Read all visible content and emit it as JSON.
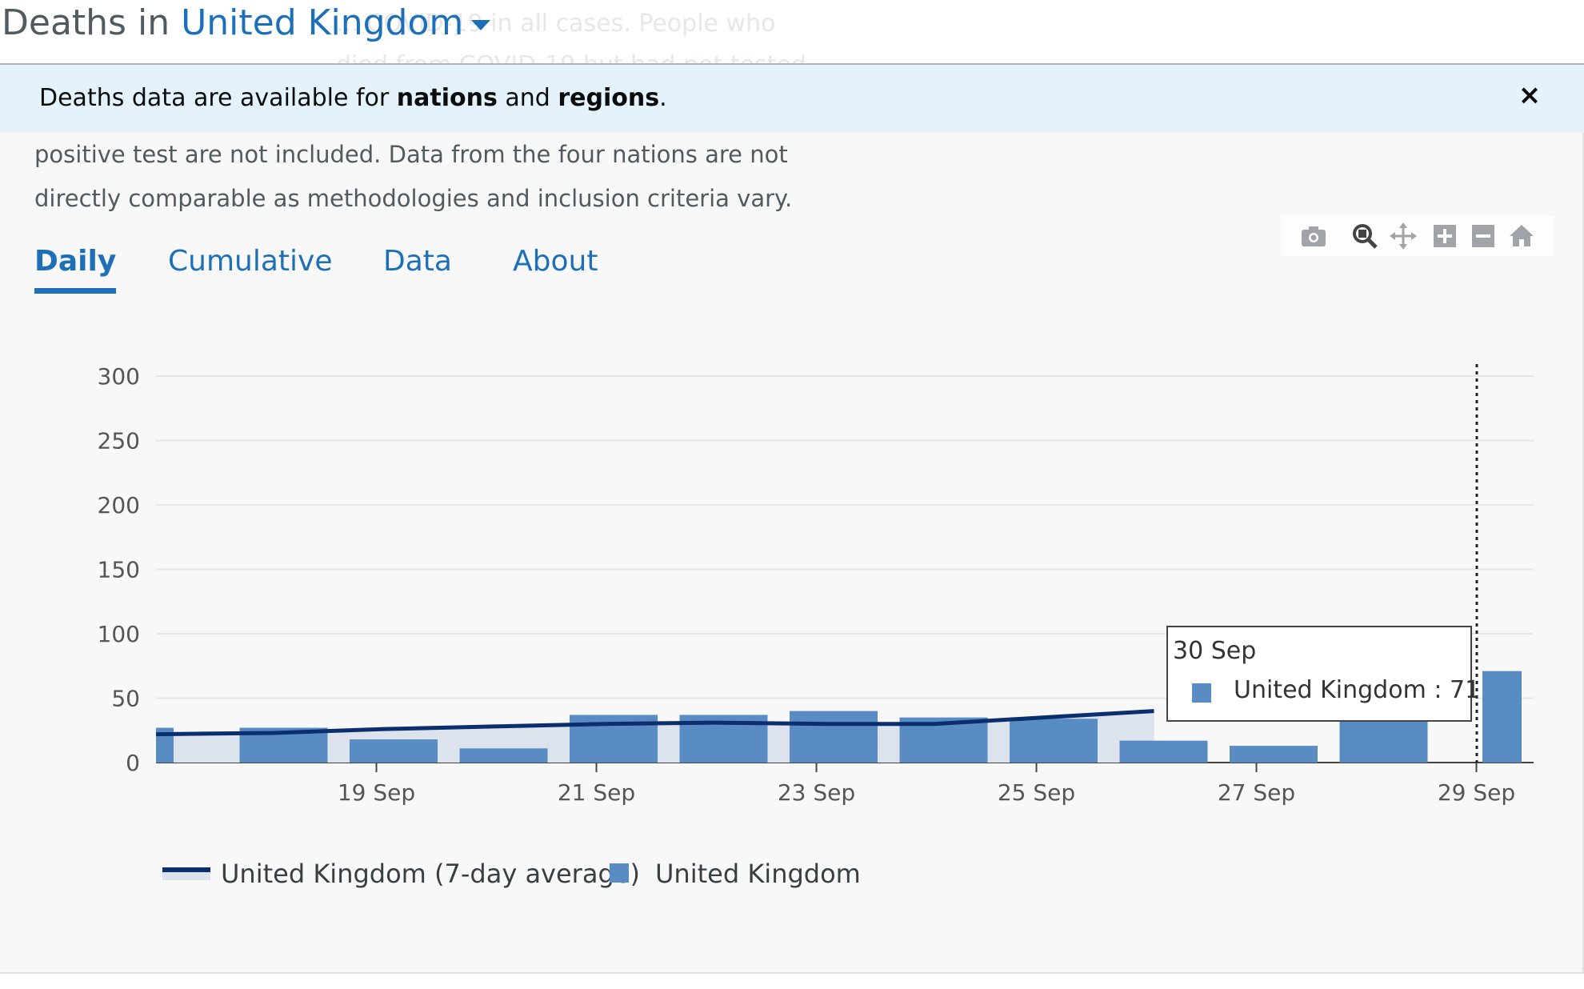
{
  "header": {
    "title_prefix": "Deaths in",
    "location": "United Kingdom",
    "ghost_text": "... COVID-19 in all cases. People who died from COVID-19 but had not tested positive are not included and"
  },
  "banner": {
    "text_1": "Deaths data are available for ",
    "link_1": "nations",
    "text_2": " and ",
    "link_2": "regions",
    "text_3": ".",
    "close": "×"
  },
  "description": {
    "line_1": "positive test are not included. Data from the four nations are not",
    "line_2": "directly comparable as methodologies and inclusion criteria vary."
  },
  "tabs": [
    {
      "label": "Daily",
      "active": true
    },
    {
      "label": "Cumulative",
      "active": false
    },
    {
      "label": "Data",
      "active": false
    },
    {
      "label": "About",
      "active": false
    }
  ],
  "modebar": [
    "camera-icon",
    "zoom-icon",
    "pan-icon",
    "zoom-in-icon",
    "zoom-out-icon",
    "home-icon"
  ],
  "tooltip": {
    "date": "30 Sep",
    "series": "United Kingdom",
    "value_text": " : 71"
  },
  "legend": {
    "line_label": "United Kingdom (7-day average)",
    "bar_label": "United Kingdom"
  },
  "colors": {
    "bar": "#5a8cc4",
    "line": "#0b2e6f",
    "area": "#dde3ec",
    "link": "#1d70b8"
  },
  "chart_data": {
    "type": "bar",
    "x": [
      "18 Sep",
      "19 Sep",
      "20 Sep",
      "21 Sep",
      "22 Sep",
      "23 Sep",
      "24 Sep",
      "25 Sep",
      "26 Sep",
      "27 Sep",
      "28 Sep",
      "29 Sep",
      "30 Sep"
    ],
    "x_tick_labels": [
      "19 Sep",
      "21 Sep",
      "23 Sep",
      "25 Sep",
      "27 Sep",
      "29 Sep"
    ],
    "y_ticks": [
      0,
      50,
      100,
      150,
      200,
      250,
      300
    ],
    "ylim": [
      0,
      300
    ],
    "series": [
      {
        "name": "United Kingdom",
        "type": "bar",
        "values": [
          27,
          27,
          18,
          11,
          37,
          37,
          40,
          35,
          34,
          17,
          13,
          37,
          71
        ]
      },
      {
        "name": "United Kingdom (7-day average)",
        "type": "line",
        "x": [
          "18 Sep",
          "19 Sep",
          "20 Sep",
          "21 Sep",
          "22 Sep",
          "23 Sep",
          "24 Sep",
          "25 Sep",
          "26 Sep",
          "27 Sep"
        ],
        "values": [
          22,
          23,
          26,
          28,
          30,
          31,
          30,
          30,
          35,
          40
        ]
      }
    ],
    "grid": true,
    "legend_position": "bottom-left"
  }
}
